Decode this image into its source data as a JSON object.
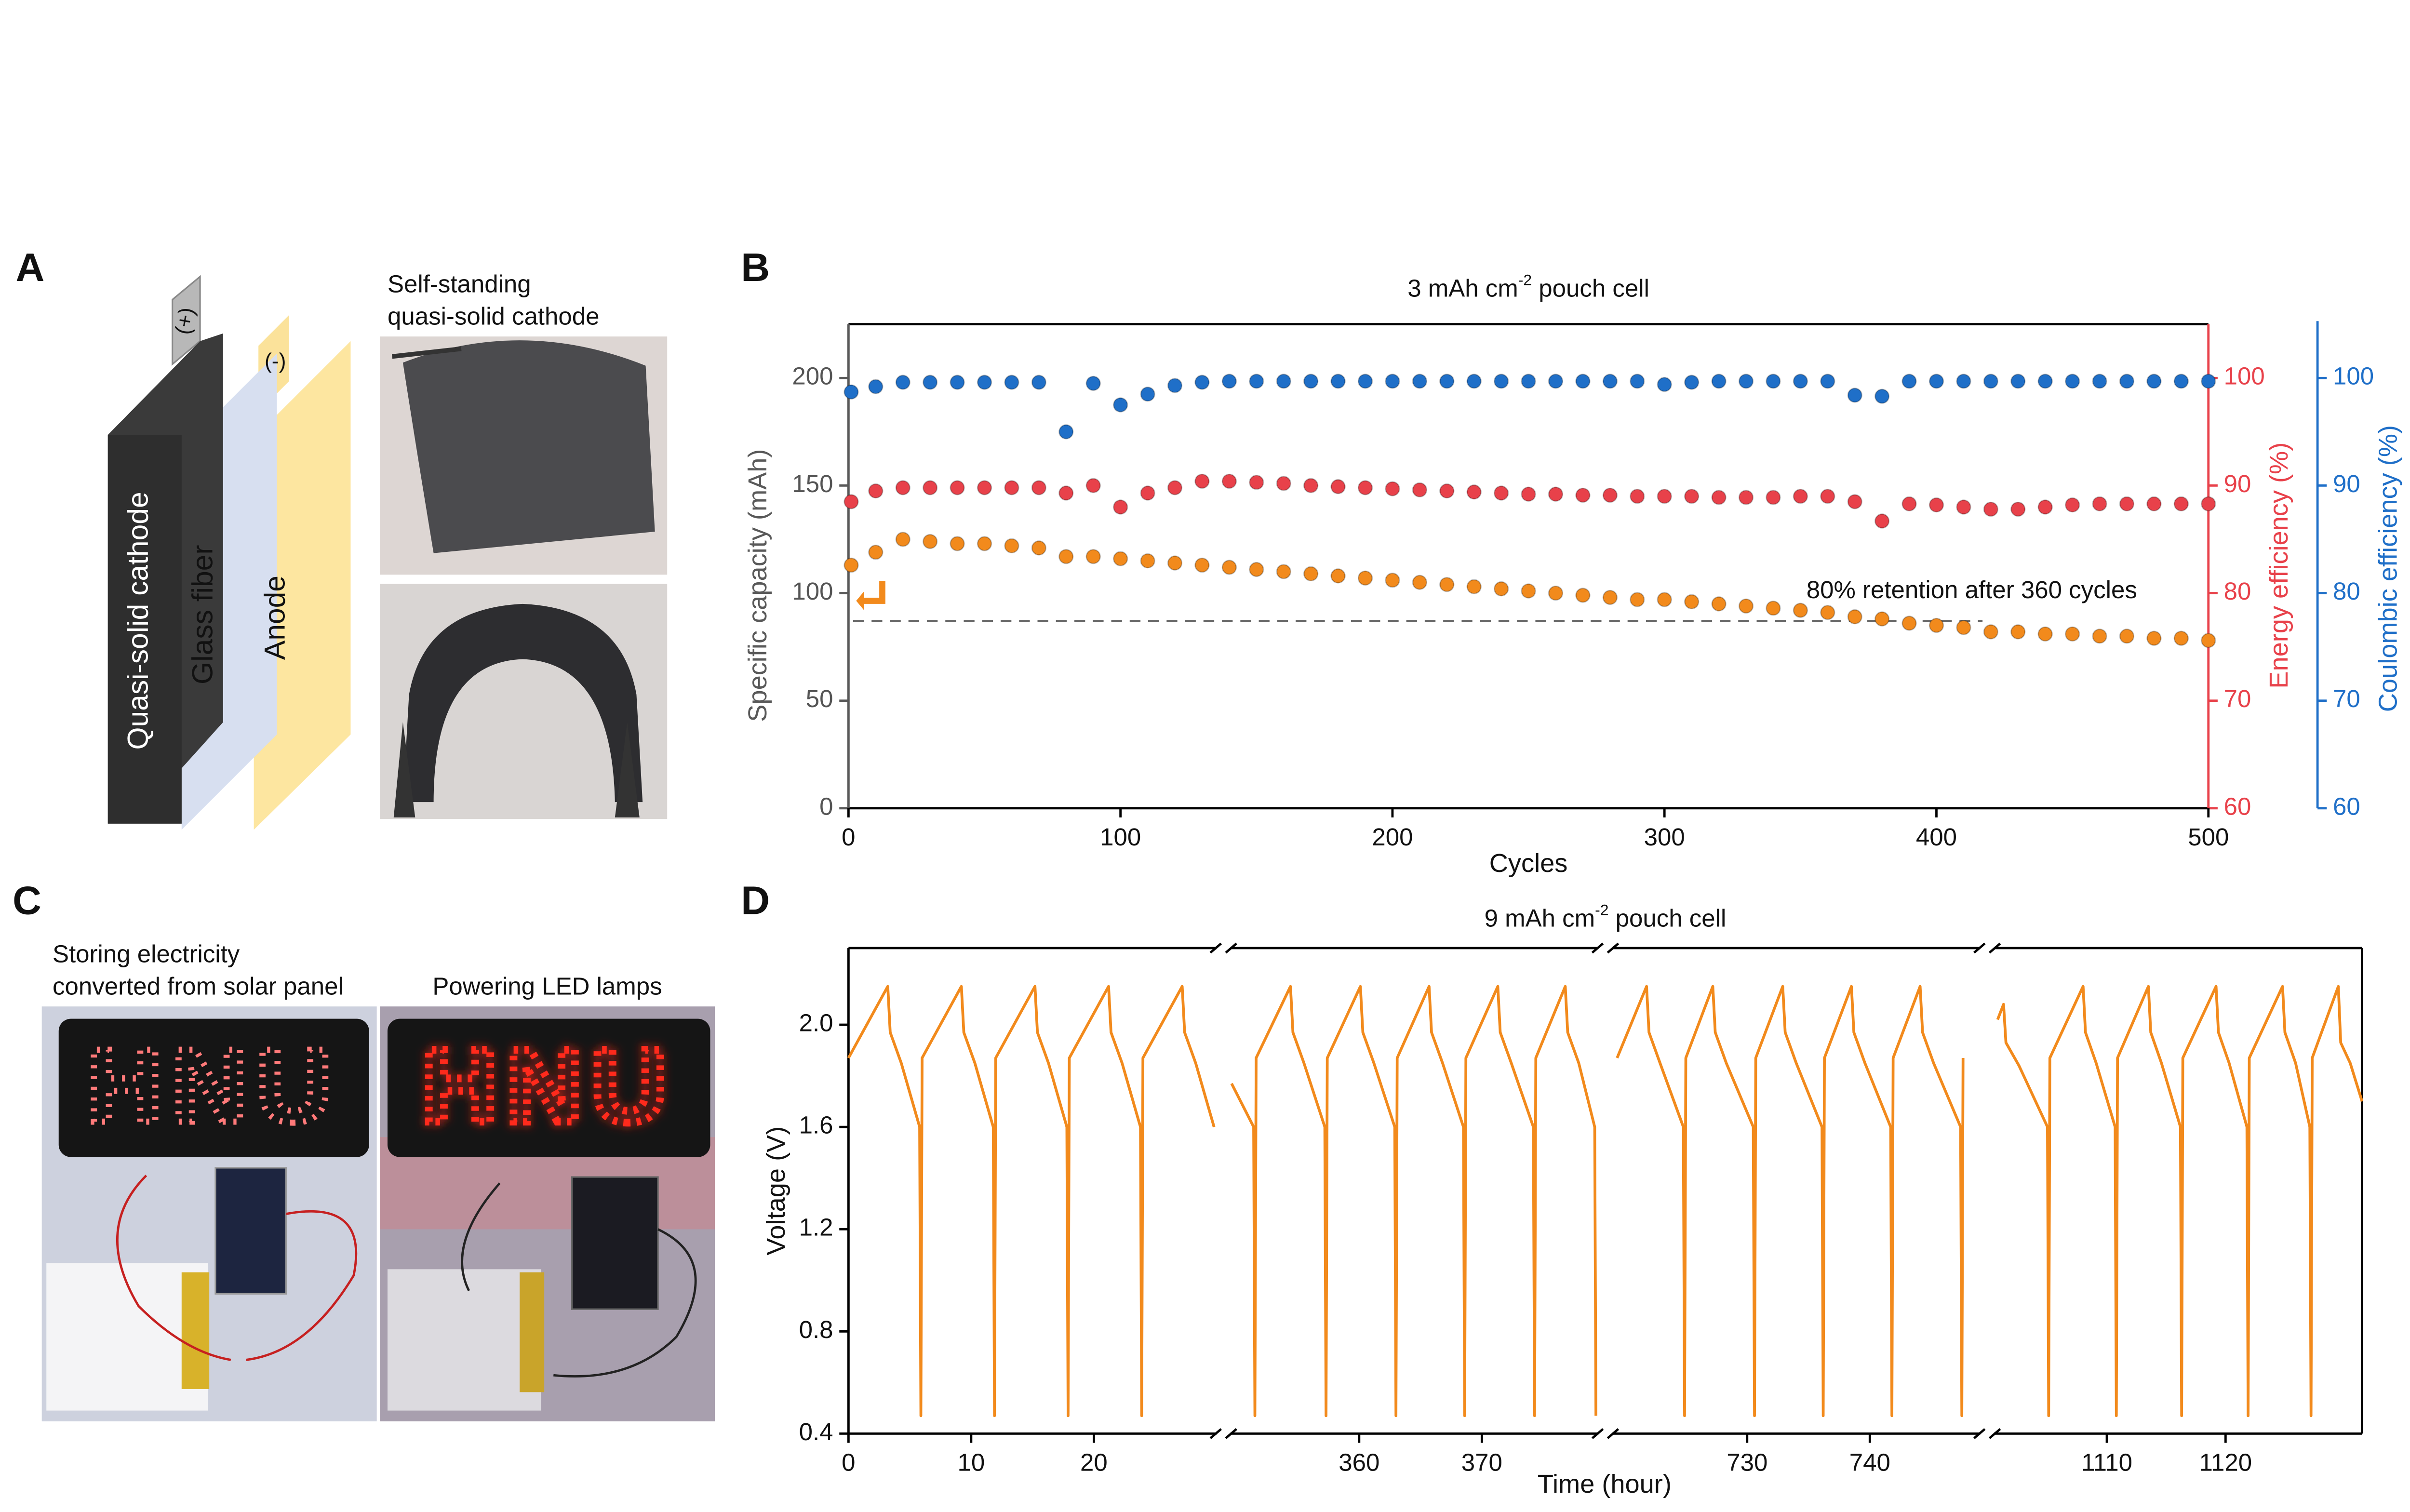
{
  "panel_labels": [
    "A",
    "B",
    "C",
    "D"
  ],
  "panel_a": {
    "layers": [
      "Quasi-solid cathode",
      "Glass fiber",
      "Anode"
    ],
    "terminals": [
      "(+)",
      "(-)"
    ],
    "photo_caption": [
      "Self-standing",
      "quasi-solid cathode"
    ]
  },
  "panel_c": {
    "captions": [
      [
        "Storing electricity",
        "converted from solar panel"
      ],
      [
        "Powering LED lamps"
      ]
    ],
    "sign": "HNU"
  },
  "chart_data": [
    {
      "type": "scatter",
      "title": {
        "text": "3 mAh cm",
        "sup": "-2",
        "tail": " pouch cell"
      },
      "x_label": "Cycles",
      "y_label": "Specific capacity (mAh)",
      "y2_label": "Energy efficiency (%)",
      "y3_label": "Coulombic efficiency (%)",
      "xlim": [
        0,
        500
      ],
      "xticks": [
        0,
        100,
        200,
        300,
        400,
        500
      ],
      "ylim": [
        0,
        225
      ],
      "yticks": [
        0,
        50,
        100,
        150,
        200
      ],
      "y2lim": [
        60,
        105
      ],
      "y2ticks": [
        60,
        70,
        80,
        90,
        100
      ],
      "y3lim": [
        60,
        105
      ],
      "y3ticks": [
        60,
        70,
        80,
        90,
        100
      ],
      "annotation": "80% retention  after 360 cycles",
      "reference_line": 87,
      "x": [
        1,
        10,
        20,
        30,
        40,
        50,
        60,
        70,
        80,
        90,
        100,
        110,
        120,
        130,
        140,
        150,
        160,
        170,
        180,
        190,
        200,
        210,
        220,
        230,
        240,
        250,
        260,
        270,
        280,
        290,
        300,
        310,
        320,
        330,
        340,
        350,
        360,
        370,
        380,
        390,
        400,
        410,
        420,
        430,
        440,
        450,
        460,
        470,
        480,
        490,
        500
      ],
      "series": [
        {
          "color": "#f28a1c",
          "axis": "y",
          "values": [
            113,
            119,
            125,
            124,
            123,
            123,
            122,
            121,
            117,
            117,
            116,
            115,
            114,
            113,
            112,
            111,
            110,
            109,
            108,
            107,
            106,
            105,
            104,
            103,
            102,
            101,
            100,
            99,
            98,
            97,
            97,
            96,
            95,
            94,
            93,
            92,
            91,
            89,
            88,
            86,
            85,
            84,
            82,
            82,
            81,
            81,
            80,
            80,
            79,
            79,
            78
          ]
        },
        {
          "color": "#e8414a",
          "axis": "y2",
          "values": [
            88.5,
            89.5,
            89.8,
            89.8,
            89.8,
            89.8,
            89.8,
            89.8,
            89.3,
            90,
            88,
            89.3,
            89.8,
            90.4,
            90.4,
            90.3,
            90.2,
            90,
            89.9,
            89.8,
            89.7,
            89.6,
            89.5,
            89.4,
            89.3,
            89.2,
            89.2,
            89.1,
            89.1,
            89,
            89,
            89,
            88.9,
            88.9,
            88.9,
            89,
            89,
            88.5,
            86.7,
            88.3,
            88.2,
            88,
            87.8,
            87.8,
            88,
            88.2,
            88.3,
            88.3,
            88.3,
            88.3,
            88.3
          ]
        },
        {
          "color": "#1f6fc8",
          "axis": "y3",
          "values": [
            98.7,
            99.2,
            99.6,
            99.6,
            99.6,
            99.6,
            99.6,
            99.6,
            95,
            99.5,
            97.5,
            98.5,
            99.3,
            99.6,
            99.7,
            99.7,
            99.7,
            99.7,
            99.7,
            99.7,
            99.7,
            99.7,
            99.7,
            99.7,
            99.7,
            99.7,
            99.7,
            99.7,
            99.7,
            99.7,
            99.4,
            99.6,
            99.7,
            99.7,
            99.7,
            99.7,
            99.7,
            98.4,
            98.3,
            99.7,
            99.7,
            99.7,
            99.7,
            99.7,
            99.7,
            99.7,
            99.7,
            99.7,
            99.7,
            99.7,
            99.7
          ]
        }
      ]
    },
    {
      "type": "line",
      "title": {
        "text": "9 mAh cm",
        "sup": "-2",
        "tail": " pouch cell"
      },
      "x_label": "Time (hour)",
      "y_label": "Voltage (V)",
      "x_segments": [
        [
          0,
          30
        ],
        [
          349.5,
          379.5
        ],
        [
          719,
          749
        ],
        [
          1100.5,
          1131.5
        ]
      ],
      "xticks": [
        0,
        10,
        20,
        360,
        370,
        730,
        740,
        1110,
        1120
      ],
      "ylim": [
        0.4,
        2.3
      ],
      "yticks": [
        0.4,
        0.8,
        1.2,
        1.6,
        {
          "value": 2,
          "label": "2.0"
        }
      ],
      "color": "#f28a1c",
      "x": [
        0,
        3.2,
        3.4,
        4.3,
        5.8,
        5.9,
        6,
        9.2,
        9.4,
        10.3,
        11.8,
        11.9,
        12,
        15.2,
        15.4,
        16.3,
        17.8,
        17.9,
        18,
        21.2,
        21.4,
        22.3,
        23.8,
        23.9,
        24,
        27.2,
        27.4,
        28.3,
        29.8,
        null,
        349.6,
        351.4,
        351.5,
        351.6,
        354.4,
        354.6,
        355.5,
        357.2,
        357.3,
        357.4,
        360.1,
        360.3,
        361.2,
        362.9,
        363,
        363.1,
        365.7,
        365.9,
        366.8,
        368.5,
        368.6,
        368.7,
        371.3,
        371.5,
        372.4,
        374.2,
        374.3,
        374.4,
        376.8,
        377,
        377.9,
        379.2,
        379.3,
        null,
        719.4,
        721.8,
        722,
        722.9,
        724.8,
        724.9,
        725,
        727.2,
        727.4,
        728.3,
        730.5,
        730.6,
        730.7,
        732.9,
        733.1,
        734,
        736.1,
        736.2,
        736.3,
        738.5,
        738.7,
        739.6,
        741.7,
        741.8,
        741.9,
        744.1,
        744.3,
        745.2,
        747.4,
        747.5,
        747.6,
        null,
        1100.8,
        1101.3,
        1101.5,
        1102.6,
        1105,
        1105.1,
        1105.2,
        1108,
        1108.2,
        1109.1,
        1110.7,
        1110.8,
        1110.9,
        1113.5,
        1113.7,
        1114.6,
        1116.2,
        1116.3,
        1116.4,
        1119.2,
        1119.4,
        1120.3,
        1121.8,
        1121.9,
        1122,
        1124.8,
        1125,
        1125.9,
        1127.1,
        1127.2,
        1127.3,
        1129.5,
        1129.7,
        1130.5,
        1131.5
      ],
      "values": [
        1.87,
        2.15,
        1.97,
        1.85,
        1.6,
        0.47,
        1.87,
        2.15,
        1.97,
        1.85,
        1.6,
        0.47,
        1.87,
        2.15,
        1.97,
        1.85,
        1.6,
        0.47,
        1.87,
        2.15,
        1.97,
        1.85,
        1.6,
        0.47,
        1.87,
        2.15,
        1.97,
        1.85,
        1.6,
        null,
        1.77,
        1.6,
        0.47,
        1.87,
        2.15,
        1.97,
        1.85,
        1.6,
        0.47,
        1.87,
        2.15,
        1.97,
        1.85,
        1.6,
        0.47,
        1.87,
        2.15,
        1.97,
        1.85,
        1.6,
        0.47,
        1.87,
        2.15,
        1.97,
        1.85,
        1.6,
        0.47,
        1.87,
        2.15,
        1.97,
        1.85,
        1.6,
        0.47,
        null,
        1.87,
        2.15,
        1.97,
        1.85,
        1.6,
        0.47,
        1.87,
        2.15,
        1.97,
        1.85,
        1.6,
        0.47,
        1.87,
        2.15,
        1.97,
        1.85,
        1.6,
        0.47,
        1.87,
        2.15,
        1.97,
        1.85,
        1.6,
        0.47,
        1.87,
        2.15,
        1.97,
        1.85,
        1.6,
        0.47,
        1.87,
        null,
        2.02,
        2.08,
        1.93,
        1.84,
        1.6,
        0.47,
        1.87,
        2.15,
        1.97,
        1.85,
        1.6,
        0.47,
        1.87,
        2.15,
        1.97,
        1.85,
        1.6,
        0.47,
        1.87,
        2.15,
        1.97,
        1.85,
        1.6,
        0.47,
        1.87,
        2.15,
        1.97,
        1.85,
        1.6,
        0.47,
        1.87,
        2.15,
        1.93,
        1.85,
        1.7
      ]
    }
  ]
}
